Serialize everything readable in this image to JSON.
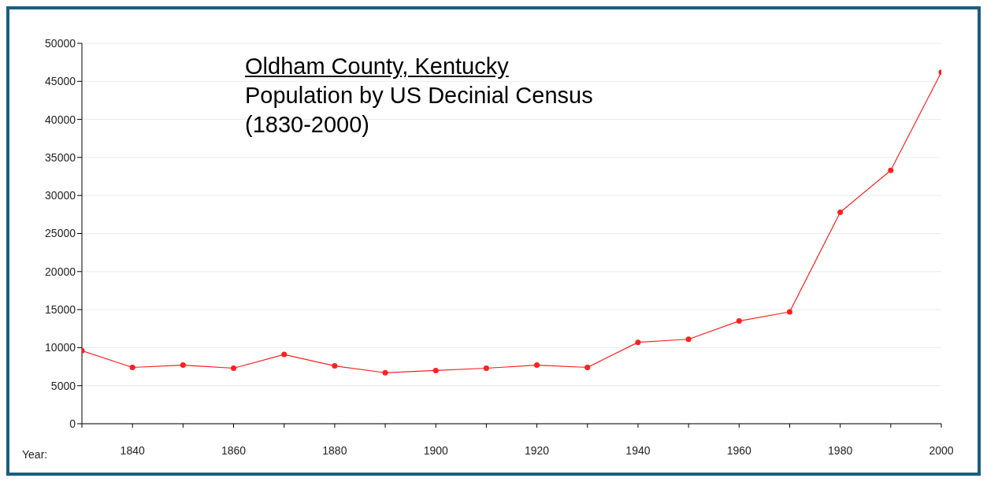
{
  "chart_data": {
    "type": "line",
    "title": "Oldham County, Kentucky",
    "subtitle": "Population by US Decinial Census\n(1830-2000)",
    "xlabel": "Year:",
    "x": [
      1830,
      1840,
      1850,
      1860,
      1870,
      1880,
      1890,
      1900,
      1910,
      1920,
      1930,
      1940,
      1950,
      1960,
      1970,
      1980,
      1990,
      2000
    ],
    "series": [
      {
        "color": "#ff2020",
        "values": [
          9600,
          7400,
          7700,
          7300,
          9100,
          7600,
          6700,
          7000,
          7300,
          7700,
          7400,
          10700,
          11100,
          13500,
          14700,
          27800,
          33300,
          46200
        ]
      }
    ],
    "xlim": [
      1830,
      2000
    ],
    "xticks": [
      {
        "value": 1830,
        "label": null
      },
      1840,
      {
        "value": 1850,
        "label": null
      },
      1860,
      {
        "value": 1870,
        "label": null
      },
      1880,
      {
        "value": 1890,
        "label": null
      },
      1900,
      {
        "value": 1910,
        "label": null
      },
      1920,
      {
        "value": 1930,
        "label": null
      },
      1940,
      {
        "value": 1950,
        "label": null
      },
      1960,
      {
        "value": 1970,
        "label": null
      },
      1980,
      {
        "value": 1990,
        "label": null
      },
      2000
    ],
    "ylim": [
      0,
      50000
    ],
    "yticks": [
      0,
      5000,
      10000,
      15000,
      20000,
      25000,
      30000,
      35000,
      40000,
      45000,
      50000
    ],
    "grid": "y",
    "legend": false,
    "marker": "circle",
    "line_style": "solid"
  }
}
